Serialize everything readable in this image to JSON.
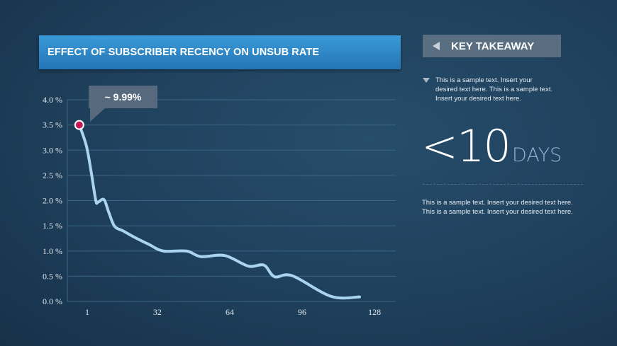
{
  "title": "EFFECT OF SUBSCRIBER RECENCY ON UNSUB RATE",
  "takeaway": {
    "heading": "KEY TAKEAWAY",
    "bullet_text": "This is a sample text. Insert your desired text here. This is a sample text. Insert your desired text here.",
    "big_value": "<10",
    "big_unit": "DAYS",
    "body_text": "This is a sample text. Insert your desired text here. This is a sample text. Insert your desired text here."
  },
  "colors": {
    "line": "#a9d3ef",
    "marker": "#c2185b",
    "title_bar": "#2f88c8",
    "grid": "#3b6584"
  },
  "chart_data": {
    "type": "line",
    "title": "",
    "xlabel": "",
    "ylabel": "",
    "annotation": "~ 9.99%",
    "x_ticks": [
      "1",
      "32",
      "64",
      "96",
      "128"
    ],
    "y_ticks": [
      "0.0 %",
      "0.5 %",
      "1.0 %",
      "1.5 %",
      "2.0 %",
      "2.5 %",
      "3.0 %",
      "3.5 %",
      "4.0 %"
    ],
    "ylim": [
      0,
      4.0
    ],
    "grid": true,
    "x": [
      -2.5,
      0.6,
      2.7,
      4.8,
      5.8,
      8.4,
      10.5,
      13.1,
      16.8,
      22,
      28.3,
      34.6,
      44.9,
      51.2,
      61.8,
      72.2,
      79.1,
      83.8,
      91.6,
      108.8,
      121.4
    ],
    "y": [
      3.5,
      3.09,
      2.58,
      2.0,
      1.97,
      2.02,
      1.77,
      1.49,
      1.4,
      1.27,
      1.13,
      1.0,
      1.0,
      0.89,
      0.91,
      0.7,
      0.72,
      0.49,
      0.51,
      0.1,
      0.09
    ],
    "highlight_point": {
      "x": -2.5,
      "y": 3.5
    }
  }
}
